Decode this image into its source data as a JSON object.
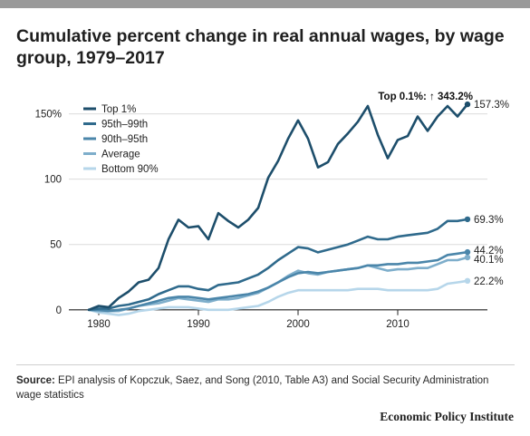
{
  "header": {
    "title": "Cumulative percent change in real annual wages, by wage group, 1979–2017"
  },
  "footer": {
    "source_label": "Source:",
    "source_text": "EPI analysis of Kopczuk, Saez, and Song (2010, Table A3) and Social Security Administration wage statistics",
    "brand": "Economic Policy Institute"
  },
  "chart_data": {
    "type": "line",
    "title": "Cumulative percent change in real annual wages, by wage group, 1979–2017",
    "xlabel": "",
    "ylabel": "",
    "xlim": [
      1977,
      2019
    ],
    "ylim": [
      -5,
      165
    ],
    "x_ticks": [
      1980,
      1990,
      2000,
      2010
    ],
    "x_tick_labels": [
      "1980",
      "1990",
      "2000",
      "2010"
    ],
    "y_ticks": [
      0,
      50,
      100,
      150
    ],
    "y_tick_labels": [
      "0",
      "50",
      "100",
      "150%"
    ],
    "grid": "horizontal",
    "legend_position": "top-left",
    "annotation": "Top 0.1%: ↑ 343.2%",
    "x": [
      1979,
      1980,
      1981,
      1982,
      1983,
      1984,
      1985,
      1986,
      1987,
      1988,
      1989,
      1990,
      1991,
      1992,
      1993,
      1994,
      1995,
      1996,
      1997,
      1998,
      1999,
      2000,
      2001,
      2002,
      2003,
      2004,
      2005,
      2006,
      2007,
      2008,
      2009,
      2010,
      2011,
      2012,
      2013,
      2014,
      2015,
      2016,
      2017
    ],
    "series": [
      {
        "name": "Top 1%",
        "color": "#1d4e6b",
        "end_label": "157.3%",
        "values": [
          0,
          3,
          2,
          9,
          14,
          21,
          23,
          32,
          54,
          69,
          63,
          64,
          54,
          74,
          68,
          63,
          69,
          78,
          101,
          114,
          131,
          145,
          131,
          109,
          113,
          127,
          135,
          144,
          156,
          134,
          116,
          130,
          133,
          148,
          137,
          148,
          156,
          148,
          157.3
        ]
      },
      {
        "name": "95th–99th",
        "color": "#2f6a8c",
        "end_label": "69.3%",
        "values": [
          0,
          1,
          1,
          3,
          4,
          6,
          8,
          12,
          15,
          18,
          18,
          16,
          15,
          19,
          20,
          21,
          24,
          27,
          32,
          38,
          43,
          48,
          47,
          44,
          46,
          48,
          50,
          53,
          56,
          54,
          54,
          56,
          57,
          58,
          59,
          62,
          68,
          68,
          69.3
        ]
      },
      {
        "name": "90th–95th",
        "color": "#4b86aa",
        "end_label": "44.2%",
        "values": [
          0,
          0,
          -1,
          0,
          1,
          3,
          5,
          7,
          9,
          10,
          10,
          9,
          8,
          9,
          10,
          11,
          12,
          14,
          17,
          21,
          25,
          28,
          29,
          28,
          29,
          30,
          31,
          32,
          34,
          34,
          35,
          35,
          36,
          36,
          37,
          38,
          42,
          43,
          44.2
        ]
      },
      {
        "name": "Average",
        "color": "#7eaecb",
        "end_label": "40.1%",
        "values": [
          0,
          -1,
          -1,
          -1,
          1,
          3,
          4,
          5,
          7,
          9,
          8,
          7,
          6,
          8,
          8,
          9,
          11,
          13,
          17,
          21,
          26,
          30,
          28,
          27,
          29,
          30,
          31,
          32,
          34,
          32,
          30,
          31,
          31,
          32,
          32,
          35,
          38,
          38,
          40.1
        ]
      },
      {
        "name": "Bottom 90%",
        "color": "#b6d6ea",
        "end_label": "22.2%",
        "values": [
          0,
          -2,
          -3,
          -4,
          -3,
          -1,
          0,
          1,
          2,
          2,
          2,
          1,
          0,
          0,
          0,
          1,
          2,
          3,
          6,
          10,
          13,
          15,
          15,
          15,
          15,
          15,
          15,
          16,
          16,
          16,
          15,
          15,
          15,
          15,
          15,
          16,
          20,
          21,
          22.2
        ]
      }
    ]
  }
}
